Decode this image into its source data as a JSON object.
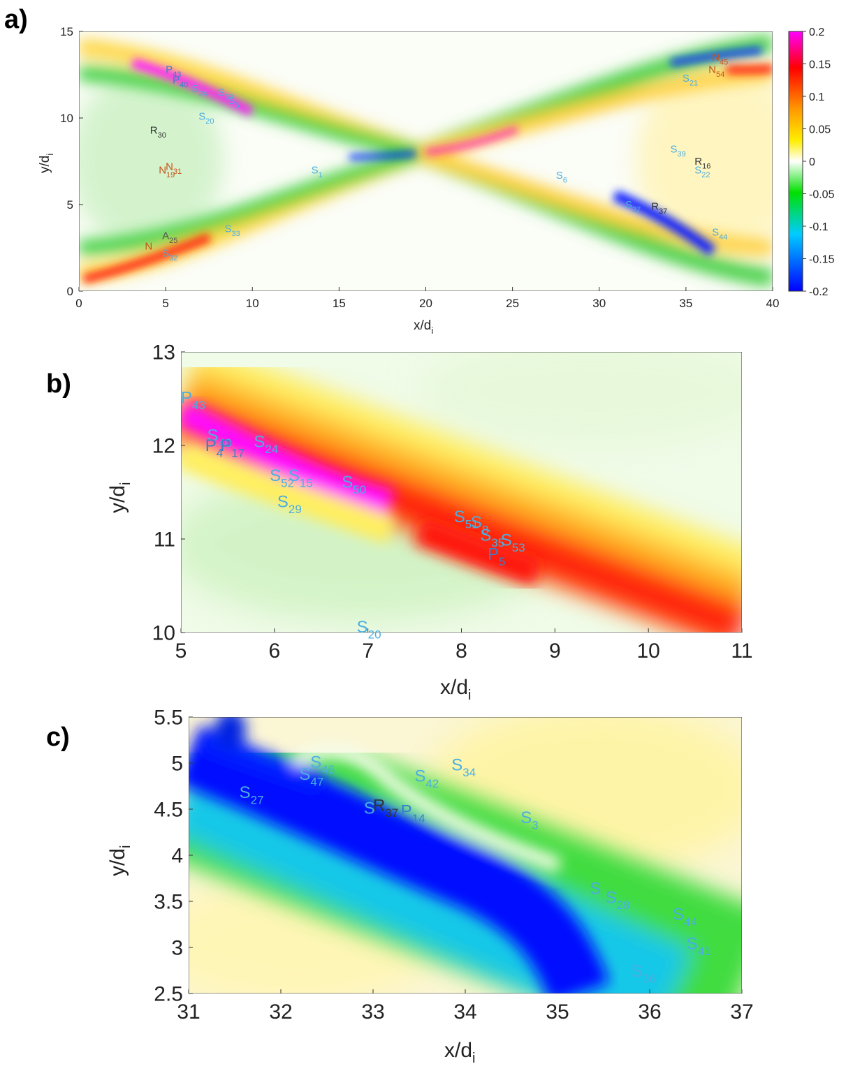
{
  "colors": {
    "S": "#4aaee0",
    "N": "#c8541a",
    "R": "#333333",
    "P": "#3a7fc8",
    "A": "#555555",
    "colormap": [
      "#0000ff",
      "#00ccff",
      "#00e000",
      "#ffffff",
      "#ffee00",
      "#ff9900",
      "#ff0000",
      "#ff00ff"
    ]
  },
  "chart_data": [
    {
      "type": "heatmap",
      "panel_label": "a)",
      "xlabel": "x/d",
      "xlabel_sub": "i",
      "ylabel": "y/d",
      "ylabel_sub": "i",
      "xlim": [
        0,
        40
      ],
      "ylim": [
        0,
        15
      ],
      "xticks": [
        0,
        5,
        10,
        15,
        20,
        25,
        30,
        35,
        40
      ],
      "yticks": [
        0,
        5,
        10,
        15
      ],
      "colorbar": {
        "min": -0.2,
        "max": 0.2,
        "ticks": [
          "0.2",
          "0.15",
          "0.1",
          "0.05",
          "0",
          "-0.05",
          "-0.1",
          "-0.15",
          "-0.2"
        ]
      },
      "annotations": [
        {
          "letter": "R",
          "sub": "30",
          "type": "R",
          "x": 4.1,
          "y": 9.1
        },
        {
          "letter": "N",
          "sub": "19",
          "type": "N",
          "x": 4.6,
          "y": 6.8
        },
        {
          "letter": "N",
          "sub": "31",
          "type": "N",
          "x": 5.0,
          "y": 7.0
        },
        {
          "letter": "P",
          "sub": "43",
          "type": "P",
          "x": 5.0,
          "y": 12.6
        },
        {
          "letter": "P",
          "sub": "40",
          "type": "P",
          "x": 5.4,
          "y": 12.0
        },
        {
          "letter": "S",
          "sub": "24",
          "type": "S",
          "x": 6.5,
          "y": 11.5
        },
        {
          "letter": "S",
          "sub": "20",
          "type": "S",
          "x": 6.9,
          "y": 9.9
        },
        {
          "letter": "S",
          "sub": "50",
          "type": "S",
          "x": 8.0,
          "y": 11.3
        },
        {
          "letter": "S",
          "sub": "5",
          "type": "S",
          "x": 8.6,
          "y": 10.8
        },
        {
          "letter": "S",
          "sub": "1",
          "type": "S",
          "x": 13.4,
          "y": 6.8
        },
        {
          "letter": "A",
          "sub": "25",
          "type": "A",
          "x": 4.8,
          "y": 3.0
        },
        {
          "letter": "N",
          "sub": "",
          "type": "N",
          "x": 3.8,
          "y": 2.4
        },
        {
          "letter": "S",
          "sub": "32",
          "type": "S",
          "x": 4.8,
          "y": 2.0
        },
        {
          "letter": "S",
          "sub": "33",
          "type": "S",
          "x": 8.4,
          "y": 3.4
        },
        {
          "letter": "S",
          "sub": "6",
          "type": "S",
          "x": 27.5,
          "y": 6.5
        },
        {
          "letter": "S",
          "sub": "39",
          "type": "S",
          "x": 34.1,
          "y": 8.0
        },
        {
          "letter": "R",
          "sub": "16",
          "type": "R",
          "x": 35.5,
          "y": 7.3
        },
        {
          "letter": "S",
          "sub": "22",
          "type": "S",
          "x": 35.5,
          "y": 6.8
        },
        {
          "letter": "S",
          "sub": "21",
          "type": "S",
          "x": 34.8,
          "y": 12.1
        },
        {
          "letter": "N",
          "sub": "45",
          "type": "N",
          "x": 36.5,
          "y": 13.3
        },
        {
          "letter": "N",
          "sub": "54",
          "type": "N",
          "x": 36.3,
          "y": 12.6
        },
        {
          "letter": "S",
          "sub": "27",
          "type": "S",
          "x": 31.5,
          "y": 4.8
        },
        {
          "letter": "R",
          "sub": "37",
          "type": "R",
          "x": 33.0,
          "y": 4.7
        },
        {
          "letter": "S",
          "sub": "44",
          "type": "S",
          "x": 36.5,
          "y": 3.2
        }
      ]
    },
    {
      "type": "heatmap",
      "panel_label": "b)",
      "xlabel": "x/d",
      "xlabel_sub": "i",
      "ylabel": "y/d",
      "ylabel_sub": "i",
      "xlim": [
        5,
        11
      ],
      "ylim": [
        10,
        13
      ],
      "xticks": [
        5,
        6,
        7,
        8,
        9,
        10,
        11
      ],
      "yticks": [
        10,
        11,
        12,
        13
      ],
      "annotations": [
        {
          "letter": "P",
          "sub": "43",
          "type": "S",
          "x": 5.0,
          "y": 12.45
        },
        {
          "letter": "S",
          "sub": "40",
          "type": "S",
          "x": 5.28,
          "y": 12.05
        },
        {
          "letter": "P",
          "sub": "4",
          "type": "P",
          "x": 5.26,
          "y": 11.94
        },
        {
          "letter": "P",
          "sub": "17",
          "type": "P",
          "x": 5.42,
          "y": 11.94
        },
        {
          "letter": "S",
          "sub": "24",
          "type": "S",
          "x": 5.78,
          "y": 11.98
        },
        {
          "letter": "S",
          "sub": "52",
          "type": "S",
          "x": 5.95,
          "y": 11.62
        },
        {
          "letter": "S",
          "sub": "15",
          "type": "S",
          "x": 6.15,
          "y": 11.62
        },
        {
          "letter": "S",
          "sub": "29",
          "type": "S",
          "x": 6.03,
          "y": 11.34
        },
        {
          "letter": "S",
          "sub": "50",
          "type": "S",
          "x": 6.72,
          "y": 11.55
        },
        {
          "letter": "S",
          "sub": "51",
          "type": "S",
          "x": 7.92,
          "y": 11.18
        },
        {
          "letter": "S",
          "sub": "8",
          "type": "S",
          "x": 8.1,
          "y": 11.12
        },
        {
          "letter": "S",
          "sub": "35",
          "type": "S",
          "x": 8.2,
          "y": 10.98
        },
        {
          "letter": "S",
          "sub": "53",
          "type": "S",
          "x": 8.42,
          "y": 10.93
        },
        {
          "letter": "P",
          "sub": "5",
          "type": "P",
          "x": 8.28,
          "y": 10.78
        },
        {
          "letter": "S",
          "sub": "20",
          "type": "S",
          "x": 6.88,
          "y": 10.0
        }
      ]
    },
    {
      "type": "heatmap",
      "panel_label": "c)",
      "xlabel": "x/d",
      "xlabel_sub": "i",
      "ylabel": "y/d",
      "ylabel_sub": "i",
      "xlim": [
        31,
        37
      ],
      "ylim": [
        2.5,
        5.5
      ],
      "xticks": [
        31,
        32,
        33,
        34,
        35,
        36,
        37
      ],
      "yticks": [
        2.5,
        3,
        3.5,
        4,
        4.5,
        5,
        5.5
      ],
      "ytick_labels": [
        "2.5",
        "3",
        "3.5",
        "4",
        "4.5",
        "5",
        "5.5"
      ],
      "annotations": [
        {
          "letter": "S",
          "sub": "27",
          "type": "S",
          "x": 31.55,
          "y": 4.62
        },
        {
          "letter": "S",
          "sub": "47",
          "type": "S",
          "x": 32.2,
          "y": 4.82
        },
        {
          "letter": "S",
          "sub": "46",
          "type": "S",
          "x": 32.32,
          "y": 4.95
        },
        {
          "letter": "S",
          "sub": "42",
          "type": "S",
          "x": 33.45,
          "y": 4.8
        },
        {
          "letter": "S",
          "sub": "34",
          "type": "S",
          "x": 33.85,
          "y": 4.92
        },
        {
          "letter": "S",
          "sub": "",
          "type": "S",
          "x": 32.9,
          "y": 4.45
        },
        {
          "letter": "R",
          "sub": "37",
          "type": "R",
          "x": 33.0,
          "y": 4.48
        },
        {
          "letter": "P",
          "sub": "14",
          "type": "P",
          "x": 33.3,
          "y": 4.42
        },
        {
          "letter": "S",
          "sub": "3",
          "type": "S",
          "x": 34.6,
          "y": 4.35
        },
        {
          "letter": "S",
          "sub": "",
          "type": "S",
          "x": 35.35,
          "y": 3.58
        },
        {
          "letter": "S",
          "sub": "28",
          "type": "S",
          "x": 35.52,
          "y": 3.48
        },
        {
          "letter": "S",
          "sub": "44",
          "type": "S",
          "x": 36.25,
          "y": 3.3
        },
        {
          "letter": "S",
          "sub": "41",
          "type": "S",
          "x": 36.4,
          "y": 2.98
        },
        {
          "letter": "S",
          "sub": "36",
          "type": "S",
          "x": 35.8,
          "y": 2.68
        }
      ]
    }
  ]
}
